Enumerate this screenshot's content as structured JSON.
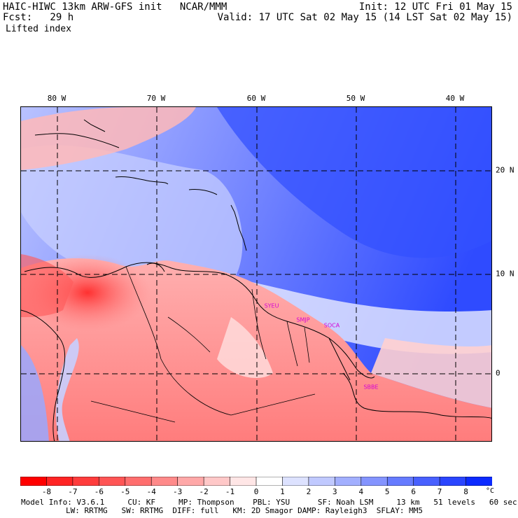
{
  "header": {
    "title": "HAIC-HIWC 13km ARW-GFS init   NCAR/MMM",
    "fcst": "Fcst:   29 h",
    "field": "Lifted index",
    "init": "Init: 12 UTC Fri 01 May 15",
    "valid": "Valid: 17 UTC Sat 02 May 15 (14 LST Sat 02 May 15)"
  },
  "map": {
    "lon_labels": [
      "80 W",
      "70 W",
      "60 W",
      "50 W",
      "40 W"
    ],
    "lat_labels": [
      "20 N",
      "10 N",
      "0"
    ],
    "city_labels": [
      "SYEU",
      "SMJP",
      "SOCA",
      "SBBE"
    ]
  },
  "colorbar": {
    "labels": [
      "-8",
      "-7",
      "-6",
      "-5",
      "-4",
      "-3",
      "-2",
      "-1",
      "0",
      "1",
      "2",
      "3",
      "4",
      "5",
      "6",
      "7",
      "8"
    ],
    "unit": "°C",
    "colors": [
      "#ff0000",
      "#ff2424",
      "#ff3c3c",
      "#ff5555",
      "#ff6e6e",
      "#ff8a8a",
      "#ffa8a8",
      "#ffc8c8",
      "#ffe6e6",
      "#ffffff",
      "#dde2ff",
      "#c0c9ff",
      "#a2afff",
      "#8494ff",
      "#667bff",
      "#4860ff",
      "#2a45ff",
      "#0c2aff"
    ]
  },
  "footer": {
    "line1": "Model Info: V3.6.1     CU: KF     MP: Thompson    PBL: YSU      SF: Noah LSM     13 km   51 levels   60 sec",
    "line2": "LW: RRTMG   SW: RRTMG  DIFF: full   KM: 2D Smagor DAMP: Rayleigh3  SFLAY: MM5"
  }
}
